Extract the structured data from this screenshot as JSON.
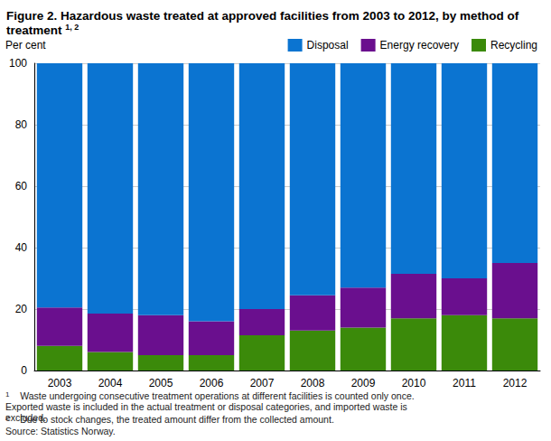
{
  "chart_data": {
    "type": "bar",
    "title": "Figure 2. Hazardous waste treated at approved facilities from 2003 to 2012, by method of treatment",
    "title_note": "1, 2",
    "y_label": "Per cent",
    "categories": [
      "2003",
      "2004",
      "2005",
      "2006",
      "2007",
      "2008",
      "2009",
      "2010",
      "2011",
      "2012"
    ],
    "series": [
      {
        "name": "Recycling",
        "color": "#3b8a0a",
        "values": [
          8,
          6,
          5,
          5,
          11.5,
          13,
          14,
          17,
          18,
          17
        ]
      },
      {
        "name": "Energy recovery",
        "color": "#6a0f8e",
        "values": [
          12.5,
          12.5,
          13,
          11,
          8.5,
          11.5,
          13,
          14.5,
          12,
          18
        ]
      },
      {
        "name": "Disposal",
        "color": "#0b74d1",
        "values": [
          79.5,
          81.5,
          82,
          84,
          80,
          75.5,
          73,
          68.5,
          70,
          65
        ]
      }
    ],
    "ylim": [
      0,
      100
    ],
    "yticks": [
      0,
      20,
      40,
      60,
      80,
      100
    ],
    "grid": true,
    "stacked": true,
    "legend": "top-right",
    "notes": [
      {
        "mark": "1",
        "text": "Waste undergoing consecutive treatment operations at different facilities is counted only once. Exported waste is included in the actual treatment or disposal categories, and imported waste is excluded."
      },
      {
        "mark": "2",
        "text": "Due to stock changes, the treated amount differ from the collected amount."
      }
    ],
    "source": "Source: Statistics Norway."
  }
}
